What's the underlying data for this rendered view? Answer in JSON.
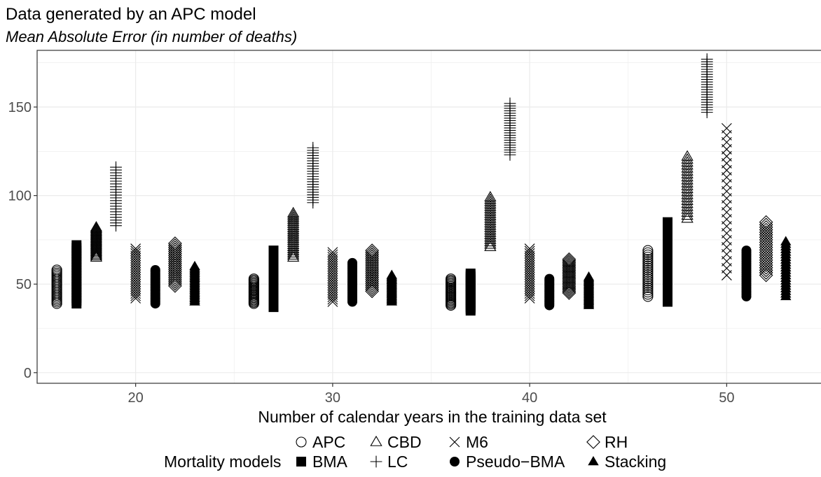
{
  "chart_data": {
    "type": "scatter",
    "title": "Data generated by an APC model",
    "subtitle": "Mean Absolute Error (in number of deaths)",
    "xlabel": "Number of calendar years in the training data set",
    "ylabel": "",
    "xlim": [
      15,
      55
    ],
    "ylim": [
      -6,
      182
    ],
    "x_ticks": [
      20,
      30,
      40,
      50
    ],
    "y_ticks": [
      0,
      50,
      100,
      150
    ],
    "grid": true,
    "legend": {
      "title": "Mortality models",
      "position": "bottom",
      "entries": [
        {
          "label": "APC",
          "shape": "circle-open"
        },
        {
          "label": "BMA",
          "shape": "square-filled"
        },
        {
          "label": "CBD",
          "shape": "triangle-open"
        },
        {
          "label": "LC",
          "shape": "plus"
        },
        {
          "label": "M6",
          "shape": "cross"
        },
        {
          "label": "Pseudo−BMA",
          "shape": "circle-filled"
        },
        {
          "label": "RH",
          "shape": "diamond-open"
        },
        {
          "label": "Stacking",
          "shape": "triangle-filled"
        }
      ]
    },
    "series": [
      {
        "name": "APC",
        "offset": -4,
        "ranges": [
          {
            "x": 20,
            "min": 39,
            "max": 58
          },
          {
            "x": 30,
            "min": 39,
            "max": 53
          },
          {
            "x": 40,
            "min": 38,
            "max": 53
          },
          {
            "x": 50,
            "min": 43,
            "max": 69
          }
        ]
      },
      {
        "name": "BMA",
        "offset": -3,
        "ranges": [
          {
            "x": 20,
            "min": 39,
            "max": 72
          },
          {
            "x": 30,
            "min": 37,
            "max": 69
          },
          {
            "x": 40,
            "min": 35,
            "max": 56
          },
          {
            "x": 50,
            "min": 40,
            "max": 85
          }
        ]
      },
      {
        "name": "CBD",
        "offset": -2,
        "ranges": [
          {
            "x": 20,
            "min": 65,
            "max": 82
          },
          {
            "x": 30,
            "min": 65,
            "max": 90
          },
          {
            "x": 40,
            "min": 71,
            "max": 99
          },
          {
            "x": 50,
            "min": 87,
            "max": 122
          }
        ]
      },
      {
        "name": "LC",
        "offset": -1,
        "ranges": [
          {
            "x": 20,
            "min": 83,
            "max": 116
          },
          {
            "x": 30,
            "min": 96,
            "max": 127
          },
          {
            "x": 40,
            "min": 123,
            "max": 152
          },
          {
            "x": 50,
            "min": 147,
            "max": 177
          }
        ]
      },
      {
        "name": "M6",
        "offset": 0,
        "ranges": [
          {
            "x": 20,
            "min": 42,
            "max": 70
          },
          {
            "x": 30,
            "min": 40,
            "max": 68
          },
          {
            "x": 40,
            "min": 42,
            "max": 70
          },
          {
            "x": 50,
            "min": 55,
            "max": 138
          }
        ]
      },
      {
        "name": "Pseudo−BMA",
        "offset": 1,
        "ranges": [
          {
            "x": 20,
            "min": 39,
            "max": 58
          },
          {
            "x": 30,
            "min": 40,
            "max": 62
          },
          {
            "x": 40,
            "min": 38,
            "max": 53
          },
          {
            "x": 50,
            "min": 43,
            "max": 69
          }
        ]
      },
      {
        "name": "RH",
        "offset": 2,
        "ranges": [
          {
            "x": 20,
            "min": 49,
            "max": 73
          },
          {
            "x": 30,
            "min": 46,
            "max": 69
          },
          {
            "x": 40,
            "min": 45,
            "max": 64
          },
          {
            "x": 50,
            "min": 55,
            "max": 85
          }
        ]
      },
      {
        "name": "Stacking",
        "offset": 3,
        "ranges": [
          {
            "x": 20,
            "min": 40,
            "max": 60
          },
          {
            "x": 30,
            "min": 40,
            "max": 55
          },
          {
            "x": 40,
            "min": 38,
            "max": 54
          },
          {
            "x": 50,
            "min": 43,
            "max": 74
          }
        ]
      }
    ]
  }
}
